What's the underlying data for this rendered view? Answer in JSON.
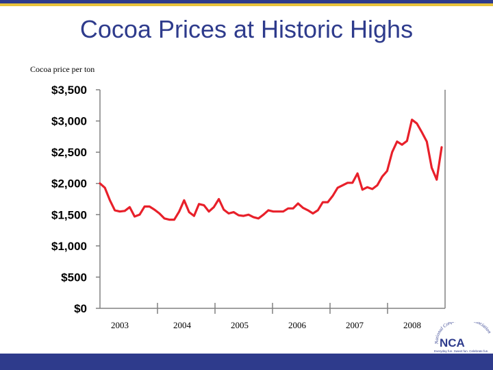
{
  "slide": {
    "title": "Cocoa Prices at Historic Highs",
    "subtitle": "Cocoa price per ton"
  },
  "colors": {
    "brand_blue": "#2e3b8c",
    "brand_gold": "#e8c23a",
    "line_red": "#e8202a"
  },
  "logo": {
    "text": "NCA",
    "arc_text": "National Confectioners Association",
    "tagline": "Everyday fun. Sweet fun. Celebrate fun."
  },
  "chart_data": {
    "type": "line",
    "title": "Cocoa price per ton",
    "xlabel": "",
    "ylabel": "",
    "ylim": [
      0,
      3500
    ],
    "y_ticks": [
      0,
      500,
      1000,
      1500,
      2000,
      2500,
      3000,
      3500
    ],
    "y_tick_labels": [
      "$0",
      "$500",
      "$1,000",
      "$1,500",
      "$2,000",
      "$2,500",
      "$3,000",
      "$3,500"
    ],
    "x_year_labels": [
      "2003",
      "2004",
      "2005",
      "2006",
      "2007",
      "2008"
    ],
    "series": [
      {
        "name": "Cocoa price per ton",
        "values": [
          2000,
          1930,
          1730,
          1570,
          1550,
          1560,
          1620,
          1470,
          1500,
          1630,
          1630,
          1580,
          1520,
          1440,
          1420,
          1420,
          1550,
          1730,
          1540,
          1480,
          1670,
          1650,
          1550,
          1620,
          1750,
          1580,
          1520,
          1540,
          1490,
          1480,
          1500,
          1460,
          1440,
          1500,
          1570,
          1550,
          1550,
          1550,
          1600,
          1600,
          1680,
          1610,
          1570,
          1520,
          1570,
          1700,
          1700,
          1800,
          1930,
          1970,
          2010,
          2010,
          2160,
          1900,
          1940,
          1910,
          1970,
          2110,
          2200,
          2500,
          2670,
          2620,
          2680,
          3020,
          2960,
          2820,
          2670,
          2250,
          2060,
          2580
        ]
      }
    ]
  }
}
